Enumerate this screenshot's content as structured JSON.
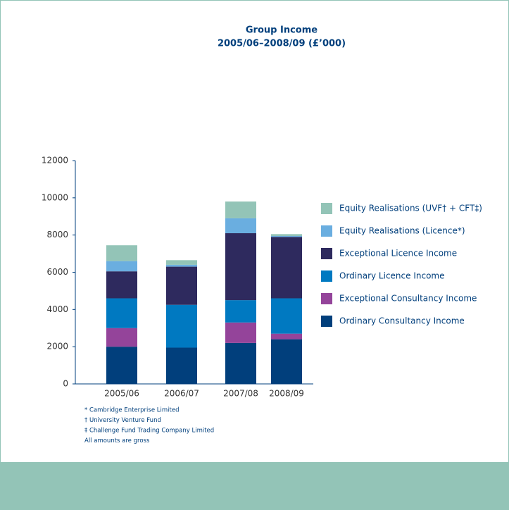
{
  "chart_data": {
    "type": "stacked_bar",
    "title": "Group Income",
    "subtitle": "2005/06–2008/09 (£’000)",
    "categories": [
      "2005/06",
      "2006/07",
      "2007/08",
      "2008/09"
    ],
    "series": [
      {
        "name": "Ordinary Consultancy Income",
        "color": "#013f7c",
        "values": [
          2000,
          1950,
          2200,
          2400
        ]
      },
      {
        "name": "Exceptional Consultancy Income",
        "color": "#94449a",
        "values": [
          1000,
          0,
          1100,
          300
        ]
      },
      {
        "name": "Ordinary Licence Income",
        "color": "#0079c1",
        "values": [
          1600,
          2300,
          1200,
          1900
        ]
      },
      {
        "name": "Exceptional Licence Income",
        "color": "#2e2a5e",
        "values": [
          1450,
          2050,
          3600,
          3300
        ]
      },
      {
        "name": "Equity Realisations (Licence*)",
        "color": "#6aaee0",
        "values": [
          550,
          100,
          800,
          50
        ]
      },
      {
        "name": "Equity Realisations (UVF† + CFT‡)",
        "color": "#93c4b7",
        "values": [
          850,
          250,
          900,
          100
        ]
      }
    ],
    "ylim": [
      0,
      12000
    ],
    "yticks": [
      0,
      2000,
      4000,
      6000,
      8000,
      10000,
      12000
    ],
    "legend": "right",
    "footnotes": [
      "* Cambridge Enterprise Limited",
      "† University Venture Fund",
      "‡ Challenge Fund Trading Company Limited",
      "All amounts are gross"
    ]
  }
}
